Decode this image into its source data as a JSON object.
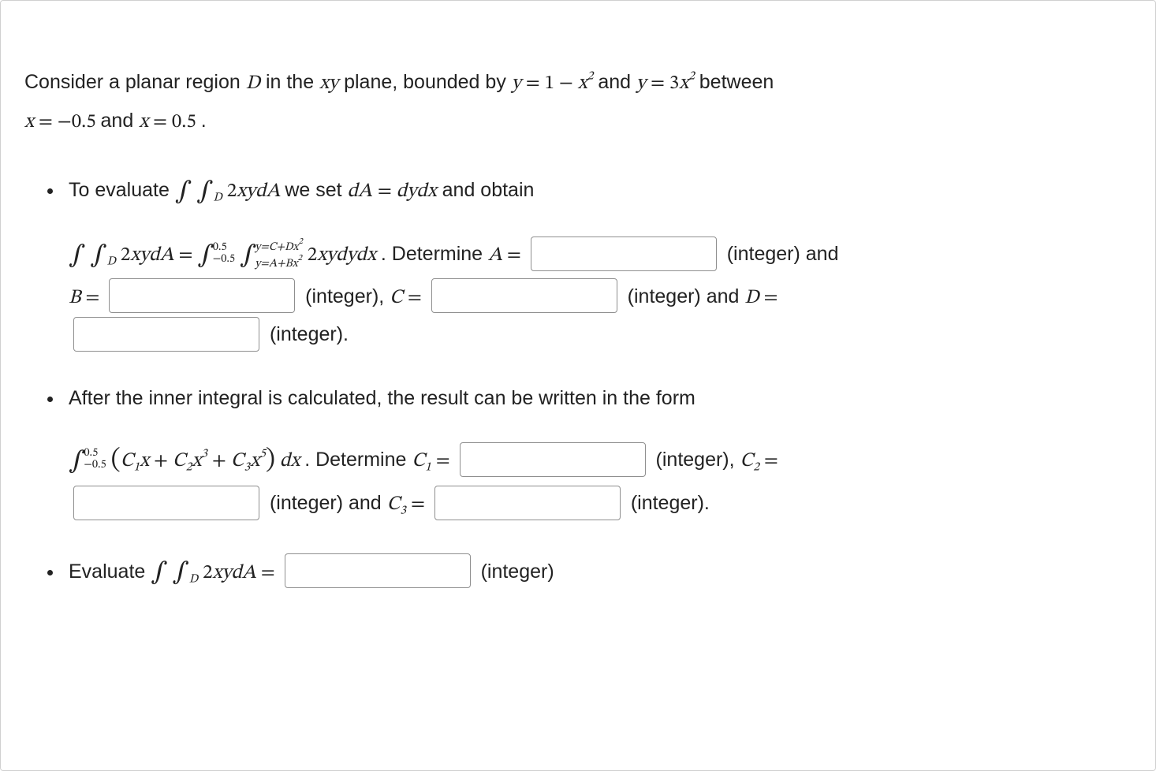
{
  "intro": {
    "prefix": "Consider a planar region ",
    "D": "D",
    "mid1": " in the ",
    "xy": "xy",
    "mid2": " plane, bounded by ",
    "eq1_lhs": "y",
    "eq1_eq": " = ",
    "eq1_rhs_a": "1 − ",
    "eq1_rhs_b": "x",
    "eq1_rhs_exp": "2",
    "and1": " and ",
    "eq2_lhs": "y",
    "eq2_eq": " = ",
    "eq2_coef": "3",
    "eq2_var": "x",
    "eq2_exp": "2",
    "between": " between ",
    "eq3_lhs": "x",
    "eq3_rhs": " = −0.5",
    "and2": " and ",
    "eq4_lhs": "x",
    "eq4_rhs": " = 0.5",
    "period": "."
  },
  "b1": {
    "lead_a": "To evaluate ",
    "int_text": "2xydA",
    "lead_b": " we set ",
    "dA": "dA",
    "eq": " = ",
    "dydx": "dydx",
    "lead_c": " and obtain",
    "row1_lhs": "2xydA",
    "row1_eq": " = ",
    "outer_lo": "−0.5",
    "outer_hi": "0.5",
    "inner_hi": "y=C+Dx",
    "inner_hi_exp": "2",
    "inner_lo": "y=A+Bx",
    "inner_lo_exp": "2",
    "integrand2": "2xydydx",
    "det": ". Determine ",
    "A": "A",
    "eqs": " = ",
    "int_tag": " (integer)",
    "and": " and ",
    "B": "B",
    "comma": ", ",
    "C": "C",
    "D2": "D",
    "period2": "."
  },
  "b2": {
    "lead": "After the inner integral is calculated, the result can be written in the form",
    "outer_lo": "−0.5",
    "outer_hi": "0.5",
    "poly_c1": "C",
    "poly_c1sub": "1",
    "poly_x": "x",
    "plus": " + ",
    "poly_c2": "C",
    "poly_c2sub": "2",
    "x3_exp": "3",
    "poly_c3": "C",
    "poly_c3sub": "3",
    "x5_exp": "5",
    "dx": " dx",
    "det": ". Determine ",
    "eqs": " = ",
    "int_tag": " (integer)",
    "comma": ", ",
    "and": " and ",
    "period": "."
  },
  "b3": {
    "lead": "Evaluate ",
    "integrand": "2xydA",
    "eqs": " = ",
    "int_tag": " (integer)"
  },
  "glyphs": {
    "integral": "∫",
    "subD": "D"
  }
}
